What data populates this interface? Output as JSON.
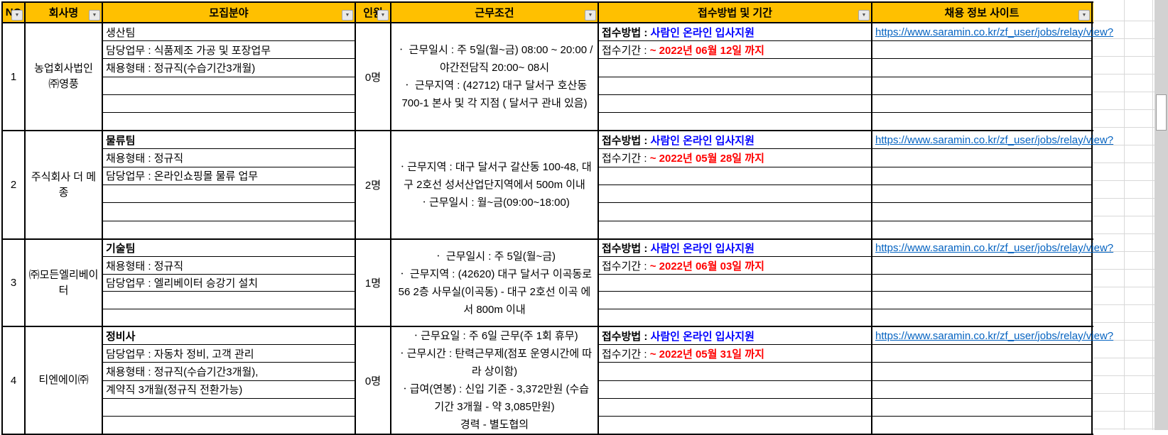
{
  "sheet": {
    "columns": [
      {
        "label": "NO"
      },
      {
        "label": "회사명"
      },
      {
        "label": "모집분야"
      },
      {
        "label": "인원"
      },
      {
        "label": "근무조건"
      },
      {
        "label": "접수방법 및 기간"
      },
      {
        "label": "채용 정보 사이트"
      }
    ],
    "filter_icon": "▼"
  },
  "rows": [
    {
      "no": "1",
      "company": "농업회사법인 ㈜영풍",
      "recruit_first_bold": false,
      "recruit_lines": [
        "생산팀",
        "담당업무 : 식품제조 가공 및 포장업무",
        "채용형태 : 정규직(수습기간3개월)",
        "",
        "",
        ""
      ],
      "headcount": "0명",
      "conditions": [
        "ㆍ 근무일시 : 주 5일(월~금) 08:00 ~ 20:00    / 야간전담직  20:00~ 08시",
        "ㆍ 근무지역 : (42712) 대구 달서구 호산동 700-1 본사 및 각 지점 ( 달서구 관내 있음)"
      ],
      "apply_method_label": "접수방법 : ",
      "apply_method_value": "사람인 온라인 입사지원",
      "apply_period_label": "접수기간 : ",
      "apply_period_value": "~ 2022년 06월 12일 까지",
      "url": "https://www.saramin.co.kr/zf_user/jobs/relay/view?"
    },
    {
      "no": "2",
      "company": "주식회사 더 메종",
      "recruit_first_bold": true,
      "recruit_lines": [
        "물류팀",
        "채용형태 : 정규직",
        "담당업무 : 온라인쇼핑몰 물류 업무",
        "",
        "",
        ""
      ],
      "headcount": "2명",
      "conditions": [
        "ㆍ근무지역 : 대구 달서구 갈산동 100-48, 대구 2호선 성서산업단지역에서 500m 이내",
        "ㆍ근무일시 : 월~금(09:00~18:00)"
      ],
      "apply_method_label": "접수방법 : ",
      "apply_method_value": "사람인 온라인 입사지원",
      "apply_period_label": "접수기간 : ",
      "apply_period_value": "~ 2022년 05월 28일 까지",
      "url": "https://www.saramin.co.kr/zf_user/jobs/relay/view?"
    },
    {
      "no": "3",
      "company": "㈜모든엘리베이터",
      "recruit_first_bold": true,
      "recruit_lines": [
        "기술팀",
        "채용형태 : 정규직",
        "담당업무 : 엘리베이터 승강기 설치",
        "",
        ""
      ],
      "headcount": "1명",
      "conditions": [
        "ㆍ 근무일시 : 주 5일(월~금)",
        "ㆍ 근무지역 : (42620) 대구 달서구 이곡동로 56 2층 사무실(이곡동) - 대구 2호선 이곡 에서 800m 이내"
      ],
      "apply_method_label": "접수방법 : ",
      "apply_method_value": "사람인 온라인 입사지원",
      "apply_period_label": "접수기간 : ",
      "apply_period_value": "~ 2022년 06월 03일 까지",
      "url": "https://www.saramin.co.kr/zf_user/jobs/relay/view?"
    },
    {
      "no": "4",
      "company": "티엔에이㈜",
      "recruit_first_bold": true,
      "recruit_lines": [
        "정비사",
        "담당업무 : 자동차 정비, 고객 관리",
        "채용형태 : 정규직(수습기간3개월),",
        "계약직 3개월(정규직 전환가능)",
        "",
        ""
      ],
      "headcount": "0명",
      "conditions": [
        "ㆍ근무요일 : 주 6일 근무(주 1회 휴무)",
        "ㆍ근무시간 : 탄력근무제(점포 운영시간에 따라 상이함)",
        "ㆍ급여(연봉) : 신입 기준 - 3,372만원 (수습기간 3개월 - 약 3,085만원)",
        "경력 - 별도협의"
      ],
      "apply_method_label": "접수방법 : ",
      "apply_method_value": "사람인 온라인 입사지원",
      "apply_period_label": "접수기간 : ",
      "apply_period_value": "~ 2022년 05월 31일 까지",
      "url": "https://www.saramin.co.kr/zf_user/jobs/relay/view?"
    }
  ],
  "colors": {
    "header_bg": "#FFC000",
    "apply_method_value": "#0000FF",
    "apply_period_value": "#FF0000",
    "hyperlink": "#0563C1",
    "table_border": "#000000",
    "gridline": "#D8D8D8"
  }
}
